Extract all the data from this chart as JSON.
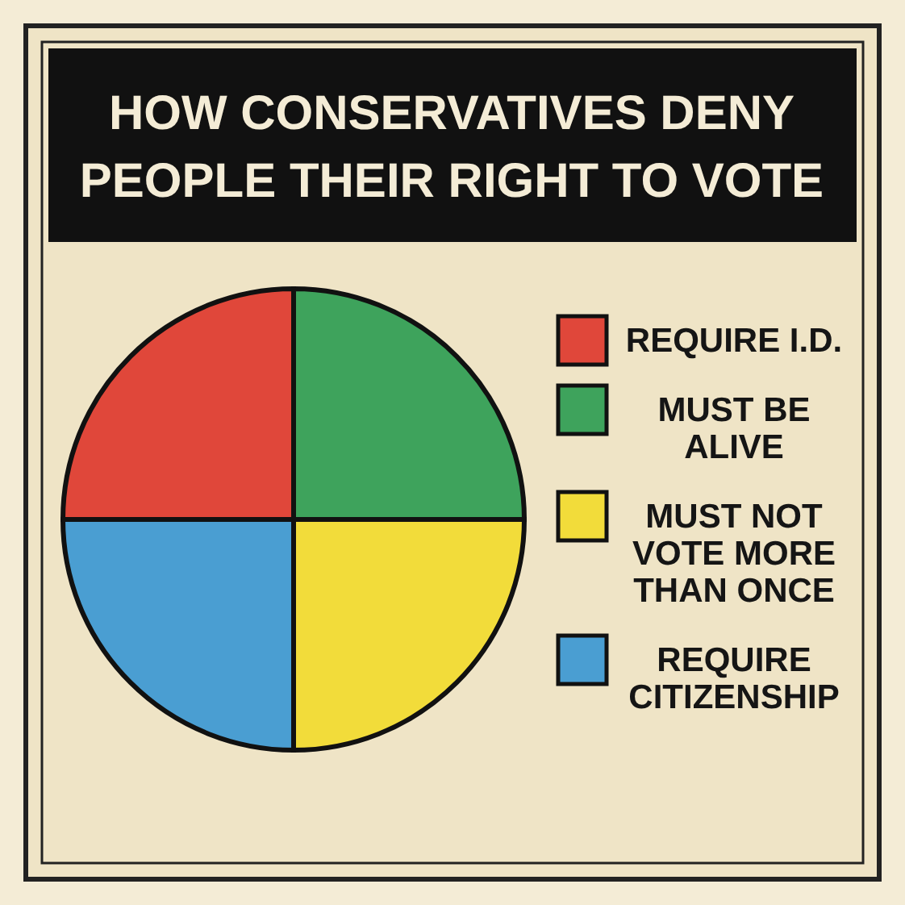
{
  "chart_data": {
    "type": "pie",
    "title": "HOW CONSERVATIVES DENY PEOPLE THEIR RIGHT TO VOTE",
    "categories": [
      "REQUIRE I.D.",
      "MUST BE ALIVE",
      "MUST NOT VOTE MORE THAN ONCE",
      "REQUIRE CITIZENSHIP"
    ],
    "values": [
      25,
      25,
      25,
      25
    ],
    "colors": [
      "#e0473a",
      "#3ea35c",
      "#f2dc3a",
      "#4a9ed2"
    ],
    "legend": "right"
  }
}
